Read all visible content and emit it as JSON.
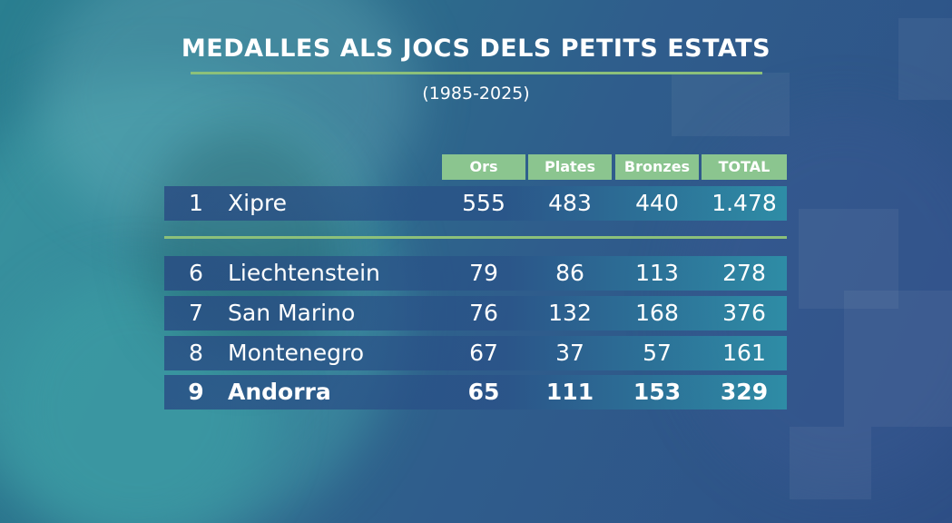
{
  "title": "MEDALLES ALS JOCS DELS PETITS ESTATS",
  "subtitle": "(1985-2025)",
  "colors": {
    "header_bg": "#8bc58f",
    "accent_line": "#8cc07a",
    "text": "#ffffff"
  },
  "table": {
    "headers": [
      "Ors",
      "Plates",
      "Bronzes",
      "TOTAL"
    ],
    "top_rows": [
      {
        "rank": "1",
        "country": "Xipre",
        "gold": "555",
        "silver": "483",
        "bronze": "440",
        "total": "1.478"
      }
    ],
    "rows": [
      {
        "rank": "6",
        "country": "Liechtenstein",
        "gold": "79",
        "silver": "86",
        "bronze": "113",
        "total": "278"
      },
      {
        "rank": "7",
        "country": "San Marino",
        "gold": "76",
        "silver": "132",
        "bronze": "168",
        "total": "376"
      },
      {
        "rank": "8",
        "country": "Montenegro",
        "gold": "67",
        "silver": "37",
        "bronze": "57",
        "total": "161"
      },
      {
        "rank": "9",
        "country": "Andorra",
        "gold": "65",
        "silver": "111",
        "bronze": "153",
        "total": "329",
        "highlight": true
      }
    ]
  }
}
